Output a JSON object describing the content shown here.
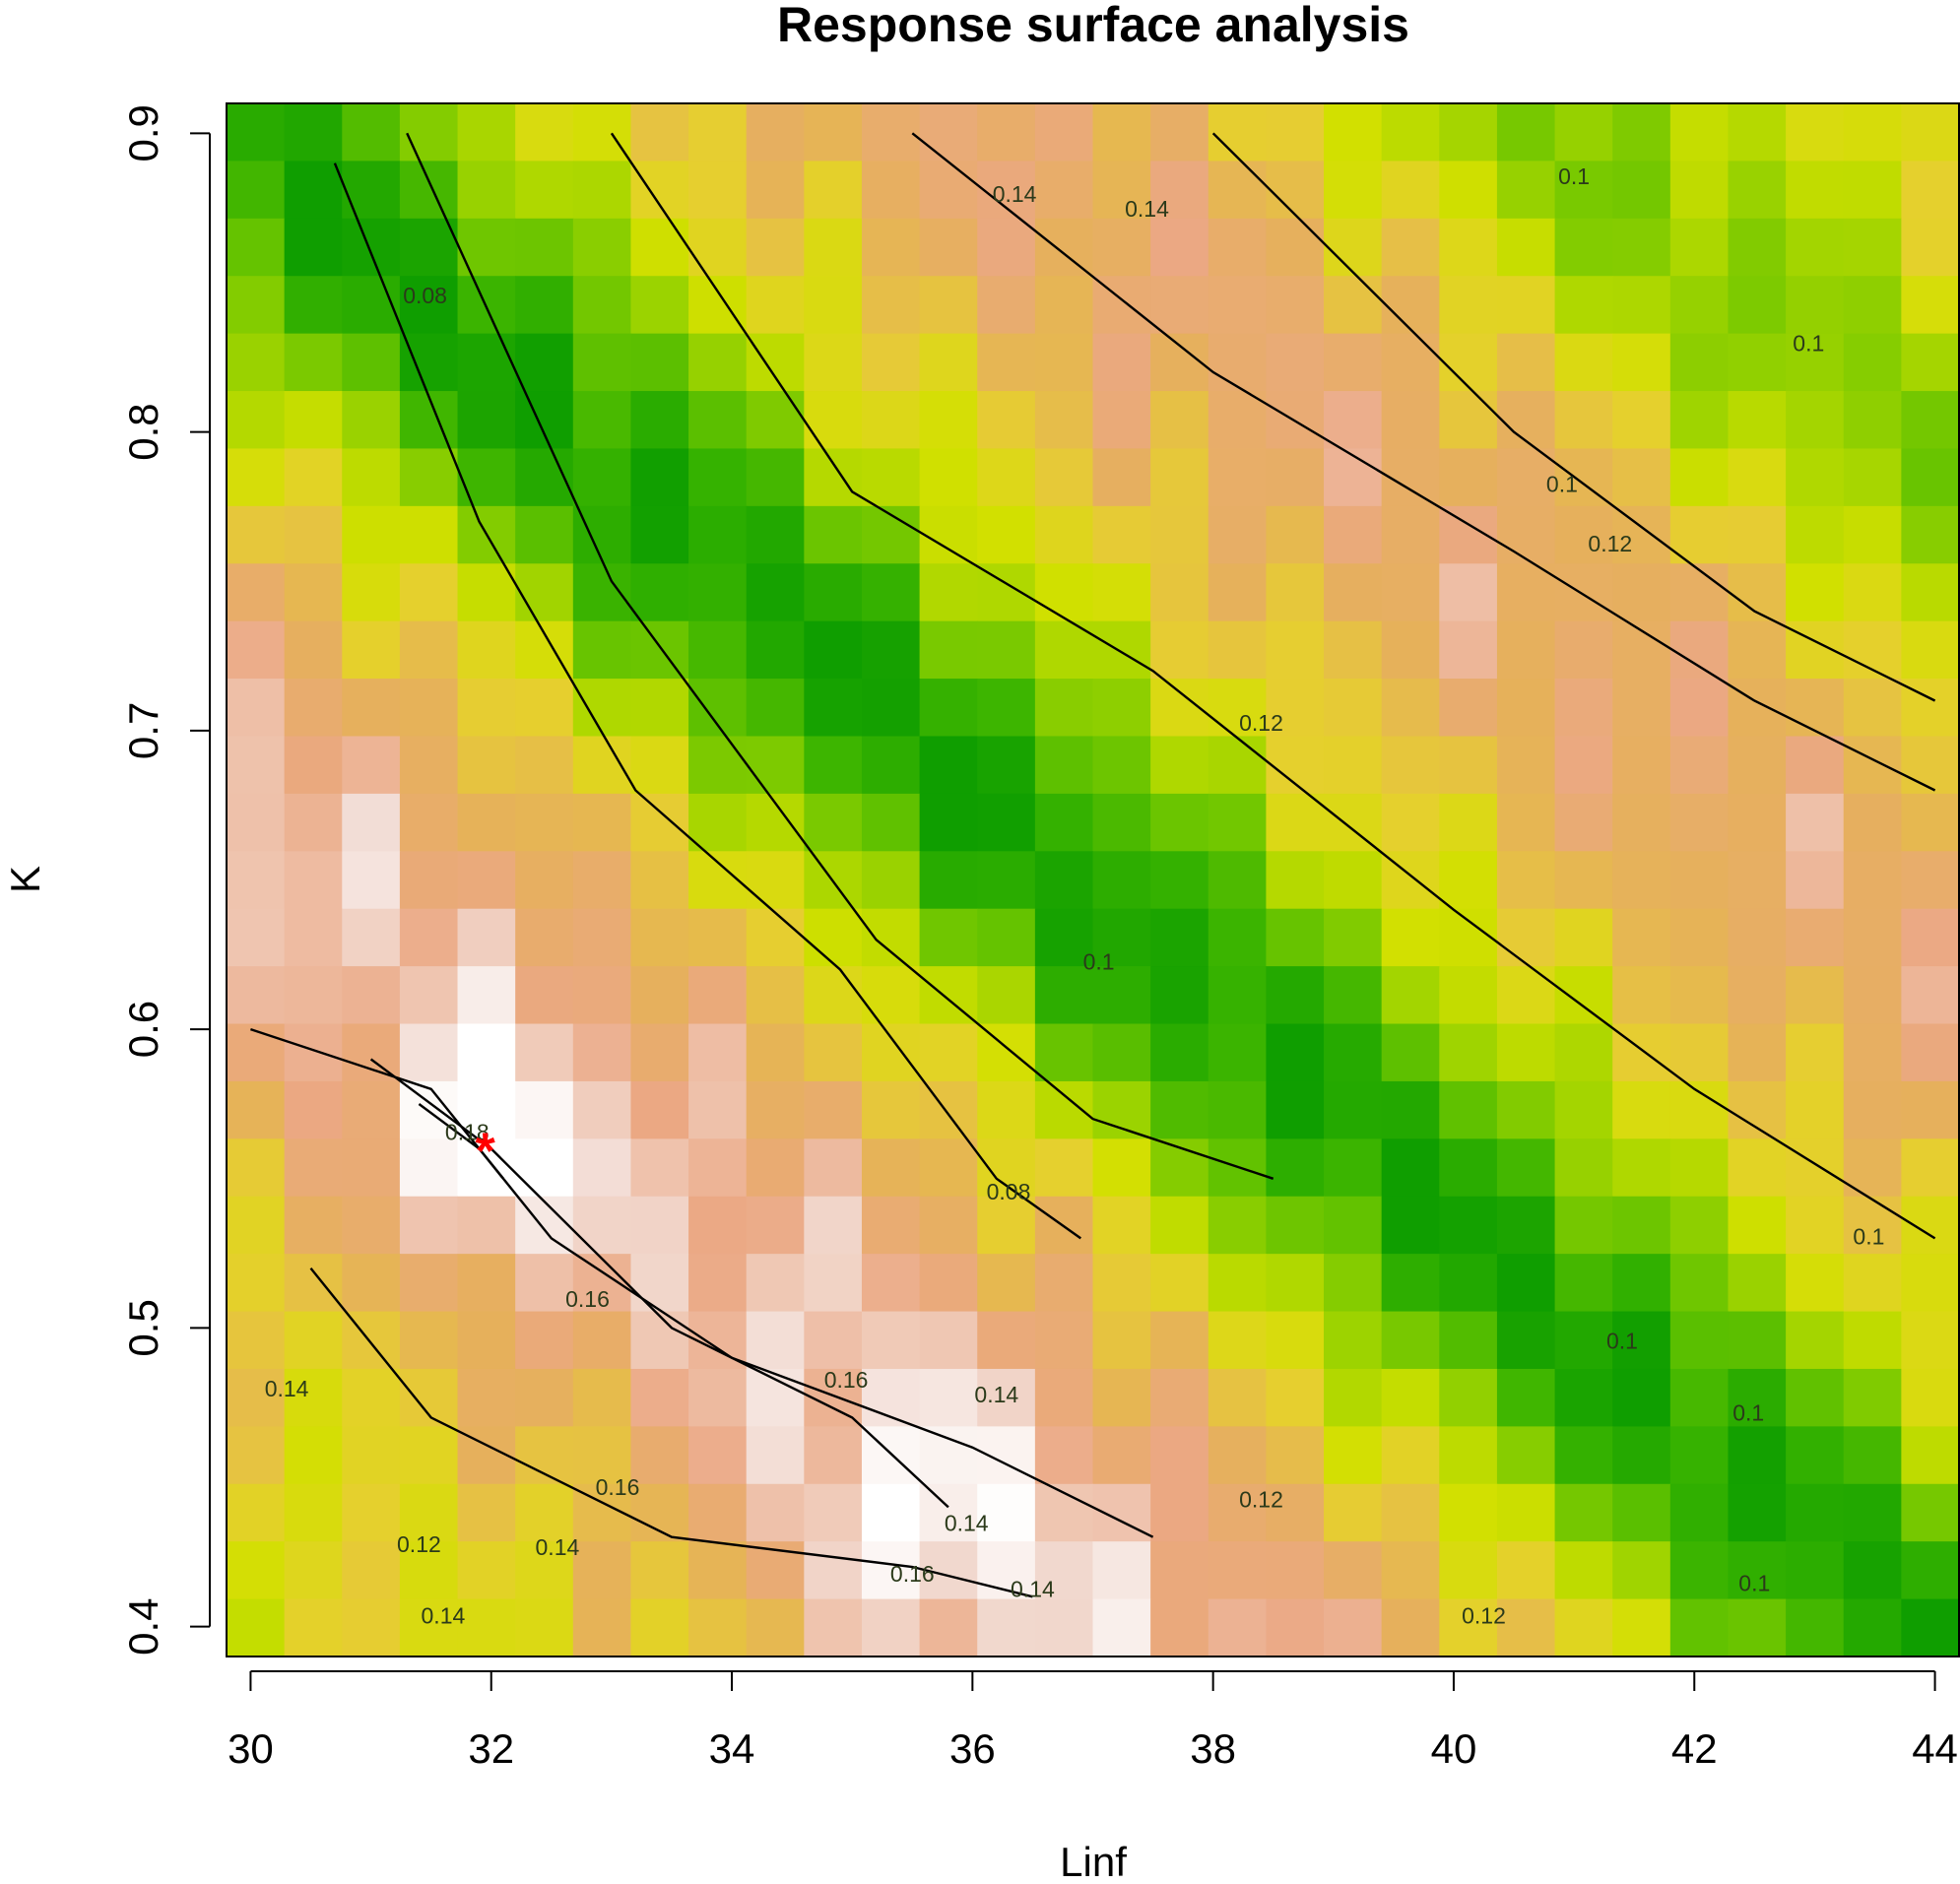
{
  "chart_data": {
    "type": "heatmap",
    "title": "Response surface analysis",
    "xlabel": "Linf",
    "ylabel": "K",
    "xlim": [
      29.8,
      44.2
    ],
    "ylim": [
      0.39,
      0.91
    ],
    "x_ticks": [
      30,
      32,
      34,
      36,
      38,
      40,
      42,
      44
    ],
    "y_ticks": [
      0.4,
      0.5,
      0.6,
      0.7,
      0.8,
      0.9
    ],
    "grid": false,
    "legend": "none",
    "fill_scale": [
      "#0f9e00",
      "#36b200",
      "#69c400",
      "#a0d400",
      "#d2e000",
      "#e6cf2f",
      "#e6b05c",
      "#eba883",
      "#f2dcd4",
      "#ffffff"
    ],
    "fill_range": [
      0.06,
      0.19
    ],
    "contour_levels": [
      0.08,
      0.1,
      0.12,
      0.14,
      0.16,
      0.18
    ],
    "contour_labels": [
      {
        "text": "0.14",
        "x": 36.35,
        "y": 0.877
      },
      {
        "text": "0.14",
        "x": 37.45,
        "y": 0.872
      },
      {
        "text": "0.1",
        "x": 41.0,
        "y": 0.883
      },
      {
        "text": "0.08",
        "x": 31.45,
        "y": 0.843
      },
      {
        "text": "0.1",
        "x": 42.95,
        "y": 0.827
      },
      {
        "text": "0.1",
        "x": 40.9,
        "y": 0.78
      },
      {
        "text": "0.12",
        "x": 41.3,
        "y": 0.76
      },
      {
        "text": "0.12",
        "x": 38.4,
        "y": 0.7
      },
      {
        "text": "0.1",
        "x": 37.05,
        "y": 0.62
      },
      {
        "text": "0.08",
        "x": 36.3,
        "y": 0.543
      },
      {
        "text": "0.18",
        "x": 31.8,
        "y": 0.563
      },
      {
        "text": "0.1",
        "x": 43.45,
        "y": 0.528
      },
      {
        "text": "0.16",
        "x": 32.8,
        "y": 0.507
      },
      {
        "text": "0.1",
        "x": 41.4,
        "y": 0.493
      },
      {
        "text": "0.14",
        "x": 30.3,
        "y": 0.477
      },
      {
        "text": "0.16",
        "x": 34.95,
        "y": 0.48
      },
      {
        "text": "0.14",
        "x": 36.2,
        "y": 0.475
      },
      {
        "text": "0.1",
        "x": 42.45,
        "y": 0.469
      },
      {
        "text": "0.16",
        "x": 33.05,
        "y": 0.444
      },
      {
        "text": "0.12",
        "x": 38.4,
        "y": 0.44
      },
      {
        "text": "0.14",
        "x": 35.95,
        "y": 0.432
      },
      {
        "text": "0.12",
        "x": 31.4,
        "y": 0.425
      },
      {
        "text": "0.14",
        "x": 32.55,
        "y": 0.424
      },
      {
        "text": "0.14",
        "x": 36.5,
        "y": 0.41
      },
      {
        "text": "0.16",
        "x": 35.5,
        "y": 0.415
      },
      {
        "text": "0.1",
        "x": 42.5,
        "y": 0.412
      },
      {
        "text": "0.14",
        "x": 31.6,
        "y": 0.401
      },
      {
        "text": "0.12",
        "x": 40.25,
        "y": 0.401
      }
    ],
    "ridges": [
      {
        "level": 0.08,
        "points": [
          [
            30.7,
            0.89
          ],
          [
            31.9,
            0.77
          ],
          [
            33.2,
            0.68
          ],
          [
            34.9,
            0.62
          ],
          [
            36.2,
            0.55
          ],
          [
            36.9,
            0.53
          ]
        ]
      },
      {
        "level": 0.1,
        "points": [
          [
            31.3,
            0.9
          ],
          [
            33.0,
            0.75
          ],
          [
            35.2,
            0.63
          ],
          [
            37.0,
            0.57
          ],
          [
            38.5,
            0.55
          ]
        ]
      },
      {
        "level": 0.12,
        "points": [
          [
            33.0,
            0.9
          ],
          [
            35.0,
            0.78
          ],
          [
            37.5,
            0.72
          ],
          [
            40.0,
            0.64
          ],
          [
            42.0,
            0.58
          ],
          [
            44.0,
            0.53
          ]
        ]
      },
      {
        "level": 0.14,
        "points": [
          [
            35.5,
            0.9
          ],
          [
            38.0,
            0.82
          ],
          [
            40.5,
            0.76
          ],
          [
            42.5,
            0.71
          ],
          [
            44.0,
            0.68
          ]
        ]
      },
      {
        "level": 0.1,
        "points": [
          [
            38.0,
            0.9
          ],
          [
            40.5,
            0.8
          ],
          [
            42.5,
            0.74
          ],
          [
            44.0,
            0.71
          ]
        ]
      },
      {
        "level": 0.14,
        "points": [
          [
            30.0,
            0.6
          ],
          [
            31.5,
            0.58
          ],
          [
            32.5,
            0.53
          ],
          [
            34.0,
            0.49
          ],
          [
            36.0,
            0.46
          ],
          [
            37.5,
            0.43
          ]
        ]
      },
      {
        "level": 0.16,
        "points": [
          [
            31.0,
            0.59
          ],
          [
            32.0,
            0.56
          ],
          [
            33.5,
            0.5
          ],
          [
            35.0,
            0.47
          ],
          [
            35.8,
            0.44
          ]
        ]
      },
      {
        "level": 0.12,
        "points": [
          [
            30.5,
            0.52
          ],
          [
            31.5,
            0.47
          ],
          [
            33.5,
            0.43
          ],
          [
            35.5,
            0.42
          ],
          [
            36.5,
            0.41
          ]
        ]
      },
      {
        "level": 0.18,
        "points": [
          [
            31.4,
            0.575
          ],
          [
            31.9,
            0.56
          ],
          [
            32.1,
            0.55
          ]
        ]
      }
    ],
    "optimum": {
      "x": 31.95,
      "y": 0.56,
      "color": "#ff0000"
    }
  }
}
